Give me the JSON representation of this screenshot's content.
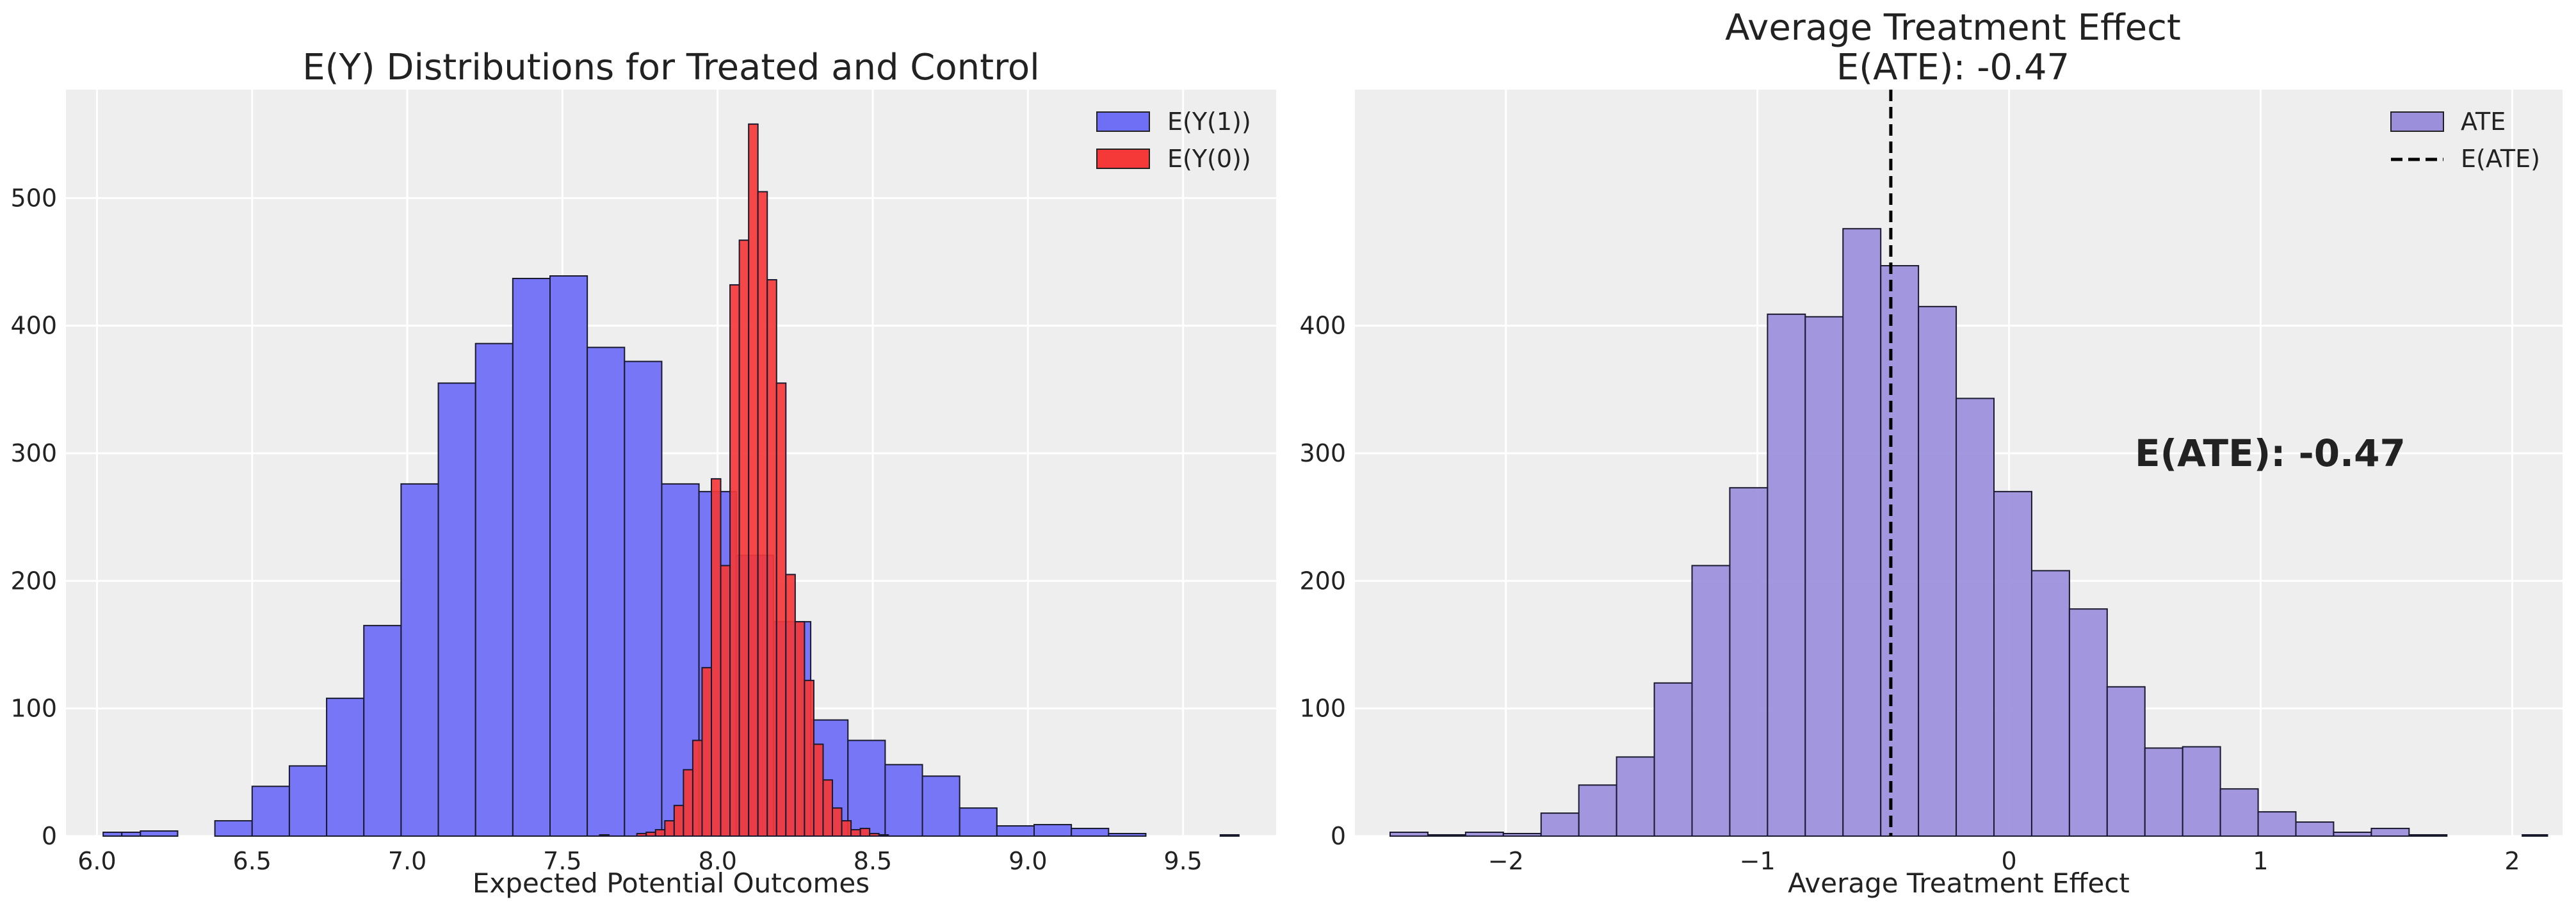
{
  "chart_data": [
    {
      "type": "histogram",
      "title": "E(Y) Distributions for Treated and Control",
      "xlabel": "Expected Potential Outcomes",
      "ylabel": "",
      "xlim": [
        5.9,
        9.8
      ],
      "ylim": [
        0,
        585
      ],
      "xticks": [
        6.0,
        6.5,
        7.0,
        7.5,
        8.0,
        8.5,
        9.0,
        9.5
      ],
      "xtick_labels": [
        "6.0",
        "6.5",
        "7.0",
        "7.5",
        "8.0",
        "8.5",
        "9.0",
        "9.5"
      ],
      "yticks": [
        0,
        100,
        200,
        300,
        400,
        500
      ],
      "ytick_labels": [
        "0",
        "100",
        "200",
        "300",
        "400",
        "500"
      ],
      "grid": true,
      "legend_position": "top-right",
      "series": [
        {
          "name": "E(Y(1))",
          "color": "#6f6ff5",
          "edges": [
            6.02,
            6.08,
            6.14,
            6.2,
            6.26,
            6.32,
            6.38,
            6.44,
            6.5,
            6.56,
            6.62,
            6.68,
            6.74,
            6.8,
            6.86,
            6.92,
            6.98,
            7.04,
            7.1,
            7.16,
            7.22,
            7.28,
            7.34,
            7.4,
            7.46,
            7.52,
            7.58,
            7.64,
            7.7,
            7.76,
            7.82,
            7.88,
            7.94,
            8.0,
            8.06,
            8.12,
            8.18,
            8.24,
            8.3,
            8.36,
            8.42,
            8.48,
            8.54,
            8.6,
            8.66,
            8.72,
            8.78,
            8.84,
            8.9,
            8.96,
            9.02,
            9.08,
            9.14,
            9.2,
            9.26,
            9.32,
            9.38,
            9.44,
            9.5,
            9.56,
            9.62,
            9.68
          ],
          "bin_edges": [
            6.02,
            6.085,
            6.148,
            6.21,
            6.273,
            6.335,
            6.398,
            6.46,
            6.522,
            6.585,
            6.647,
            6.71,
            6.772,
            6.834,
            6.897,
            6.959,
            7.022,
            7.084,
            7.147,
            7.209,
            7.271,
            7.334,
            7.396,
            7.459,
            7.521,
            7.583,
            7.646,
            7.708,
            7.771,
            7.833,
            7.895,
            7.958,
            8.02,
            8.083,
            8.145,
            8.207,
            8.27,
            8.332,
            8.395,
            8.457,
            8.52,
            8.582,
            8.644,
            8.707,
            8.769,
            8.832,
            8.894,
            8.956,
            9.019,
            9.081,
            9.144,
            9.206,
            9.268,
            9.331,
            9.393,
            9.456,
            9.518,
            9.58,
            9.643,
            9.705
          ],
          "bins_x0": [
            6.02,
            6.08,
            6.21,
            6.39,
            6.45,
            6.51,
            6.58,
            6.64,
            6.7,
            6.76,
            6.83,
            6.89,
            6.95,
            7.01,
            7.07,
            7.14,
            7.2,
            7.26,
            7.32,
            7.38,
            7.45,
            7.51,
            7.57,
            7.63,
            7.69,
            7.76,
            7.82,
            7.88,
            7.94,
            8.0,
            8.07,
            8.13,
            8.19,
            8.25,
            8.31,
            8.38,
            8.44,
            8.5,
            8.56,
            8.62,
            8.69,
            8.75,
            8.81,
            8.87,
            8.93,
            9.0,
            9.06,
            9.12,
            9.18,
            9.24,
            9.31,
            9.37,
            9.43,
            9.49,
            9.55,
            9.62
          ],
          "bins": [
            {
              "x0": 6.02,
              "x1": 6.08,
              "count": 3
            },
            {
              "x0": 6.08,
              "x1": 6.14,
              "count": 3
            },
            {
              "x0": 6.14,
              "x1": 6.26,
              "count": 4
            },
            {
              "x0": 6.26,
              "x1": 6.38,
              "count": 0
            },
            {
              "x0": 6.38,
              "x1": 6.5,
              "count": 12
            },
            {
              "x0": 6.5,
              "x1": 6.62,
              "count": 39
            },
            {
              "x0": 6.62,
              "x1": 6.74,
              "count": 55
            },
            {
              "x0": 6.74,
              "x1": 6.86,
              "count": 108
            },
            {
              "x0": 6.86,
              "x1": 6.98,
              "count": 165
            },
            {
              "x0": 6.98,
              "x1": 7.1,
              "count": 276
            },
            {
              "x0": 7.1,
              "x1": 7.22,
              "count": 355
            },
            {
              "x0": 7.22,
              "x1": 7.34,
              "count": 386
            },
            {
              "x0": 7.34,
              "x1": 7.46,
              "count": 437
            },
            {
              "x0": 7.46,
              "x1": 7.58,
              "count": 439
            },
            {
              "x0": 7.58,
              "x1": 7.7,
              "count": 383
            },
            {
              "x0": 7.7,
              "x1": 7.82,
              "count": 372
            },
            {
              "x0": 7.82,
              "x1": 7.94,
              "count": 276
            },
            {
              "x0": 7.94,
              "x1": 8.06,
              "count": 270
            },
            {
              "x0": 8.06,
              "x1": 8.18,
              "count": 220
            },
            {
              "x0": 8.18,
              "x1": 8.3,
              "count": 168
            },
            {
              "x0": 8.3,
              "x1": 8.42,
              "count": 91
            },
            {
              "x0": 8.42,
              "x1": 8.54,
              "count": 75
            },
            {
              "x0": 8.54,
              "x1": 8.66,
              "count": 56
            },
            {
              "x0": 8.66,
              "x1": 8.78,
              "count": 47
            },
            {
              "x0": 8.78,
              "x1": 8.9,
              "count": 22
            },
            {
              "x0": 8.9,
              "x1": 9.02,
              "count": 8
            },
            {
              "x0": 9.02,
              "x1": 9.14,
              "count": 9
            },
            {
              "x0": 9.14,
              "x1": 9.26,
              "count": 6
            },
            {
              "x0": 9.26,
              "x1": 9.38,
              "count": 2
            },
            {
              "x0": 9.38,
              "x1": 9.5,
              "count": 0
            },
            {
              "x0": 9.5,
              "x1": 9.62,
              "count": 0
            },
            {
              "x0": 9.62,
              "x1": 9.68,
              "count": 1
            }
          ]
        },
        {
          "name": "E(Y(0))",
          "color": "#f53838",
          "bins": [
            {
              "x0": 7.62,
              "x1": 7.65,
              "count": 1
            },
            {
              "x0": 7.74,
              "x1": 7.77,
              "count": 2
            },
            {
              "x0": 7.77,
              "x1": 7.8,
              "count": 3
            },
            {
              "x0": 7.8,
              "x1": 7.83,
              "count": 5
            },
            {
              "x0": 7.83,
              "x1": 7.86,
              "count": 12
            },
            {
              "x0": 7.86,
              "x1": 7.89,
              "count": 24
            },
            {
              "x0": 7.89,
              "x1": 7.92,
              "count": 52
            },
            {
              "x0": 7.92,
              "x1": 7.95,
              "count": 75
            },
            {
              "x0": 7.95,
              "x1": 7.98,
              "count": 132
            },
            {
              "x0": 7.98,
              "x1": 8.01,
              "count": 280
            },
            {
              "x0": 8.01,
              "x1": 8.04,
              "count": 212
            },
            {
              "x0": 8.04,
              "x1": 8.07,
              "count": 432
            },
            {
              "x0": 8.07,
              "x1": 8.1,
              "count": 467
            },
            {
              "x0": 8.1,
              "x1": 8.13,
              "count": 558
            },
            {
              "x0": 8.13,
              "x1": 8.16,
              "count": 505
            },
            {
              "x0": 8.16,
              "x1": 8.19,
              "count": 436
            },
            {
              "x0": 8.19,
              "x1": 8.22,
              "count": 355
            },
            {
              "x0": 8.22,
              "x1": 8.25,
              "count": 205
            },
            {
              "x0": 8.25,
              "x1": 8.28,
              "count": 168
            },
            {
              "x0": 8.28,
              "x1": 8.31,
              "count": 122
            },
            {
              "x0": 8.31,
              "x1": 8.34,
              "count": 72
            },
            {
              "x0": 8.34,
              "x1": 8.37,
              "count": 44
            },
            {
              "x0": 8.37,
              "x1": 8.4,
              "count": 22
            },
            {
              "x0": 8.4,
              "x1": 8.43,
              "count": 12
            },
            {
              "x0": 8.43,
              "x1": 8.46,
              "count": 5
            },
            {
              "x0": 8.46,
              "x1": 8.49,
              "count": 6
            },
            {
              "x0": 8.49,
              "x1": 8.52,
              "count": 2
            },
            {
              "x0": 8.52,
              "x1": 8.55,
              "count": 1
            }
          ]
        }
      ]
    },
    {
      "type": "histogram",
      "title_line1": "Average Treatment Effect",
      "title_line2": "E(ATE): -0.47",
      "xlabel": "Average Treatment Effect",
      "ylabel": "",
      "xlim": [
        -2.6,
        2.2
      ],
      "ylim": [
        0,
        585
      ],
      "xticks": [
        -2,
        -1,
        0,
        1,
        2
      ],
      "xtick_labels": [
        "−2",
        "−1",
        "0",
        "1",
        "2"
      ],
      "yticks": [
        0,
        100,
        200,
        300,
        400
      ],
      "ytick_labels": [
        "0",
        "100",
        "200",
        "300",
        "400"
      ],
      "grid": true,
      "legend_position": "top-right",
      "series": [
        {
          "name": "ATE",
          "color": "#9b8fdc",
          "bins": [
            {
              "x0": -2.46,
              "x1": -2.31,
              "count": 3
            },
            {
              "x0": -2.31,
              "x1": -2.16,
              "count": 1
            },
            {
              "x0": -2.16,
              "x1": -2.01,
              "count": 3
            },
            {
              "x0": -2.01,
              "x1": -1.86,
              "count": 2
            },
            {
              "x0": -1.86,
              "x1": -1.71,
              "count": 18
            },
            {
              "x0": -1.71,
              "x1": -1.56,
              "count": 40
            },
            {
              "x0": -1.56,
              "x1": -1.41,
              "count": 62
            },
            {
              "x0": -1.41,
              "x1": -1.26,
              "count": 120
            },
            {
              "x0": -1.26,
              "x1": -1.11,
              "count": 212
            },
            {
              "x0": -1.11,
              "x1": -0.96,
              "count": 273
            },
            {
              "x0": -0.96,
              "x1": -0.81,
              "count": 409
            },
            {
              "x0": -0.81,
              "x1": -0.66,
              "count": 407
            },
            {
              "x0": -0.66,
              "x1": -0.51,
              "count": 476
            },
            {
              "x0": -0.51,
              "x1": -0.36,
              "count": 447
            },
            {
              "x0": -0.36,
              "x1": -0.21,
              "count": 415
            },
            {
              "x0": -0.21,
              "x1": -0.06,
              "count": 343
            },
            {
              "x0": -0.06,
              "x1": 0.09,
              "count": 270
            },
            {
              "x0": 0.09,
              "x1": 0.24,
              "count": 208
            },
            {
              "x0": 0.24,
              "x1": 0.39,
              "count": 178
            },
            {
              "x0": 0.39,
              "x1": 0.54,
              "count": 117
            },
            {
              "x0": 0.54,
              "x1": 0.69,
              "count": 69
            },
            {
              "x0": 0.69,
              "x1": 0.84,
              "count": 70
            },
            {
              "x0": 0.84,
              "x1": 0.99,
              "count": 37
            },
            {
              "x0": 0.99,
              "x1": 1.14,
              "count": 19
            },
            {
              "x0": 1.14,
              "x1": 1.29,
              "count": 11
            },
            {
              "x0": 1.29,
              "x1": 1.44,
              "count": 3
            },
            {
              "x0": 1.44,
              "x1": 1.59,
              "count": 6
            },
            {
              "x0": 1.59,
              "x1": 1.74,
              "count": 1
            },
            {
              "x0": 1.74,
              "x1": 1.89,
              "count": 0
            },
            {
              "x0": 1.89,
              "x1": 2.04,
              "count": 0
            },
            {
              "x0": 2.04,
              "x1": 2.14,
              "count": 1
            }
          ]
        }
      ],
      "vline": {
        "name": "E(ATE)",
        "x": -0.47,
        "style": "dashed",
        "color": "#000000"
      },
      "annotation": {
        "text": "E(ATE): -0.47",
        "x": 0.5,
        "y": 300
      }
    }
  ]
}
